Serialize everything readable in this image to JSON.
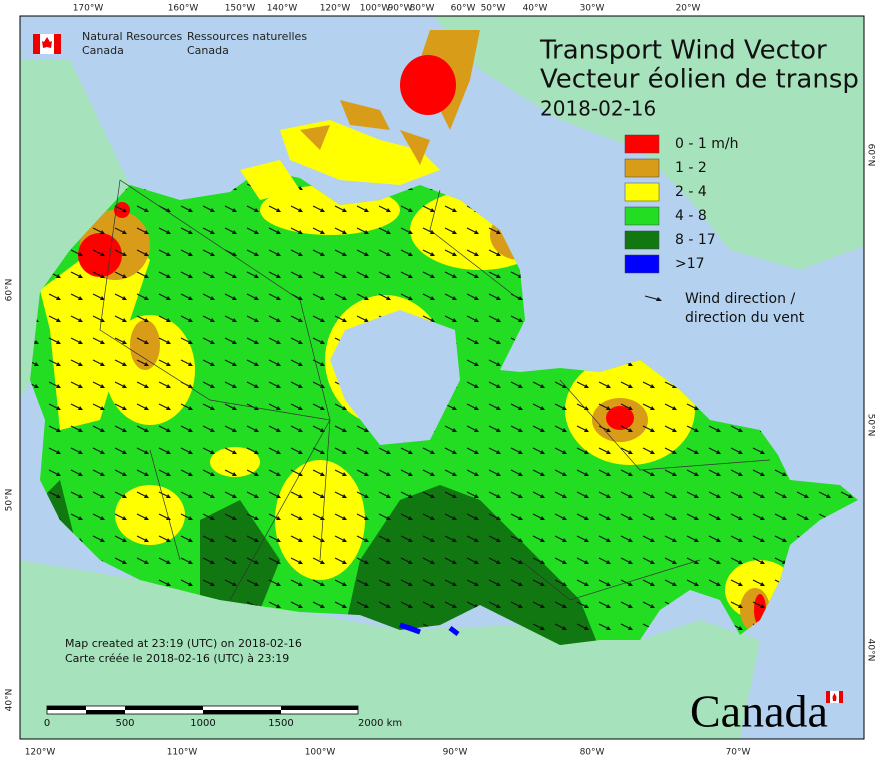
{
  "agency": {
    "en_line1": "Natural Resources",
    "en_line2": "Canada",
    "fr_line1": "Ressources naturelles",
    "fr_line2": "Canada"
  },
  "title": {
    "line1": "Transport Wind Vector",
    "line2": "Vecteur éolien de transp",
    "date": "2018-02-16"
  },
  "legend": {
    "items": [
      {
        "label": "0 - 1 m/h",
        "color": "#ff0000"
      },
      {
        "label": "1 - 2",
        "color": "#d89c18"
      },
      {
        "label": "2 - 4",
        "color": "#ffff00"
      },
      {
        "label": "4 - 8",
        "color": "#22dd22"
      },
      {
        "label": "8 - 17",
        "color": "#117711"
      },
      {
        "label": ">17",
        "color": "#0000ff"
      }
    ],
    "arrow_line1": "Wind direction /",
    "arrow_line2": "direction du vent"
  },
  "credits": {
    "line1": "Map created at 23:19 (UTC) on 2018-02-16",
    "line2": "Carte créée le 2018-02-16 (UTC) à 23:19"
  },
  "scale_bar": {
    "labels": [
      "0",
      "500",
      "1000",
      "1500",
      "2000 km"
    ]
  },
  "graticule": {
    "top": [
      "170°W",
      "160°W",
      "150°W",
      "140°W",
      "120°W",
      "100°W",
      "90°W",
      "80°W",
      "60°W",
      "50°W",
      "40°W",
      "30°W",
      "20°W"
    ],
    "bottom": [
      "120°W",
      "110°W",
      "100°W",
      "90°W",
      "80°W",
      "70°W"
    ],
    "left": [
      "60°N",
      "50°N",
      "40°N"
    ],
    "right": [
      "60°N",
      "50°N",
      "40°N"
    ]
  },
  "wordmark": "Canada"
}
